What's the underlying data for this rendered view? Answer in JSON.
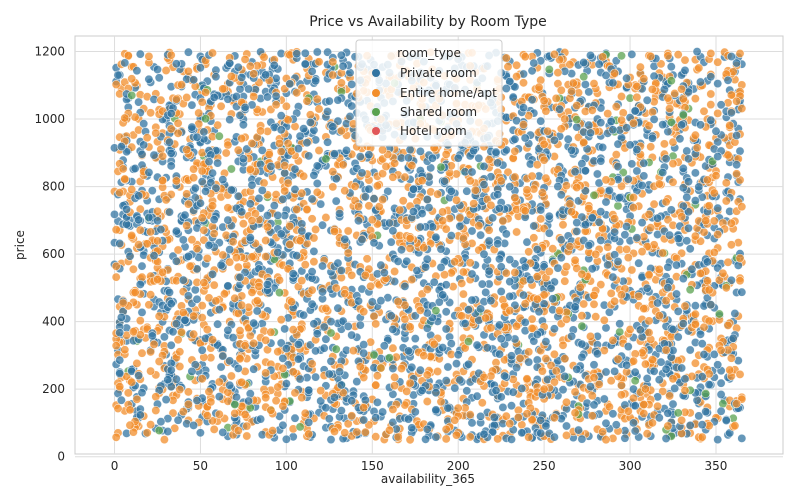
{
  "chart_data": {
    "type": "scatter",
    "title": "Price vs Availability by Room Type",
    "xlabel": "availability_365",
    "ylabel": "price",
    "xlim": [
      -23,
      389
    ],
    "ylim": [
      8,
      1246
    ],
    "x_ticks": [
      0,
      50,
      100,
      150,
      200,
      250,
      300,
      350
    ],
    "y_ticks": [
      0,
      200,
      400,
      600,
      800,
      1000,
      1200
    ],
    "grid": true,
    "legend": {
      "title": "room_type",
      "placement": "top-center",
      "entries": [
        "Private room",
        "Entire home/apt",
        "Shared room",
        "Hotel room"
      ]
    },
    "series": [
      {
        "name": "Private room",
        "color": "#3274a1",
        "x_range": [
          0,
          365
        ],
        "y_range": [
          50,
          1200
        ],
        "approx_count": 2400
      },
      {
        "name": "Entire home/apt",
        "color": "#f28e2b",
        "x_range": [
          0,
          365
        ],
        "y_range": [
          50,
          1200
        ],
        "approx_count": 2300
      },
      {
        "name": "Shared room",
        "color": "#59a14f",
        "x_range": [
          0,
          365
        ],
        "y_range": [
          50,
          1200
        ],
        "approx_count": 110
      },
      {
        "name": "Hotel room",
        "color": "#e15759",
        "x_range": [
          0,
          365
        ],
        "y_range": [
          50,
          1200
        ],
        "approx_count": 0
      }
    ]
  }
}
